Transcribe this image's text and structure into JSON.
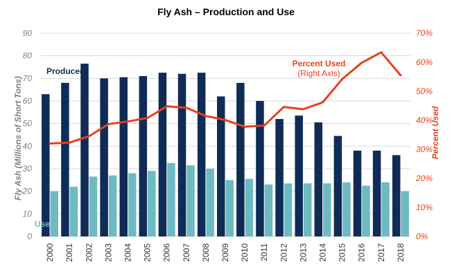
{
  "chart_data": {
    "type": "bar",
    "title": "Fly Ash – Production and Use",
    "ylabel": "Fly Ash (Millions of Short Tons)",
    "ylabel_right": "Percent Used",
    "ylim": [
      0,
      90
    ],
    "ylim_right": [
      0,
      70
    ],
    "y_ticks": [
      "0",
      "10",
      "20",
      "30",
      "40",
      "50",
      "60",
      "70",
      "80",
      "90"
    ],
    "y_ticks_right": [
      "0%",
      "10%",
      "20%",
      "30%",
      "40%",
      "50%",
      "60%",
      "70%"
    ],
    "grid": true,
    "categories": [
      "2000",
      "2001",
      "2002",
      "2003",
      "2004",
      "2005",
      "2006",
      "2007",
      "2008",
      "2009",
      "2010",
      "2011",
      "2012",
      "2013",
      "2014",
      "2015",
      "2016",
      "2017",
      "2018"
    ],
    "series": [
      {
        "name": "Produced",
        "kind": "bar",
        "axis": "left",
        "color": "#0f2c57",
        "values": [
          63,
          68,
          76.5,
          70,
          70.5,
          71,
          72.5,
          72,
          72.5,
          62,
          68,
          60,
          52,
          53.5,
          50.5,
          44.5,
          38,
          38,
          36
        ]
      },
      {
        "name": "Used",
        "kind": "bar",
        "axis": "left",
        "color": "#6dbac2",
        "values": [
          20,
          22,
          26.5,
          27,
          28,
          29,
          32.5,
          31.5,
          30,
          25,
          25.5,
          23,
          23.5,
          23.5,
          23.5,
          24,
          22.5,
          24,
          20
        ]
      },
      {
        "name": "Percent Used",
        "kind": "line",
        "axis": "right",
        "color": "#e8401c",
        "values": [
          32,
          32.3,
          34.5,
          38.7,
          39.6,
          40.8,
          44.8,
          44.3,
          41.5,
          40.1,
          37.8,
          38.2,
          44.6,
          43.8,
          46.2,
          54.2,
          59.8,
          63.4,
          55.5
        ]
      }
    ],
    "annotations": {
      "produced": "Produced",
      "used": "Used",
      "percent_used": "Percent Used",
      "right_axis_note": "(Right Axis)"
    }
  }
}
